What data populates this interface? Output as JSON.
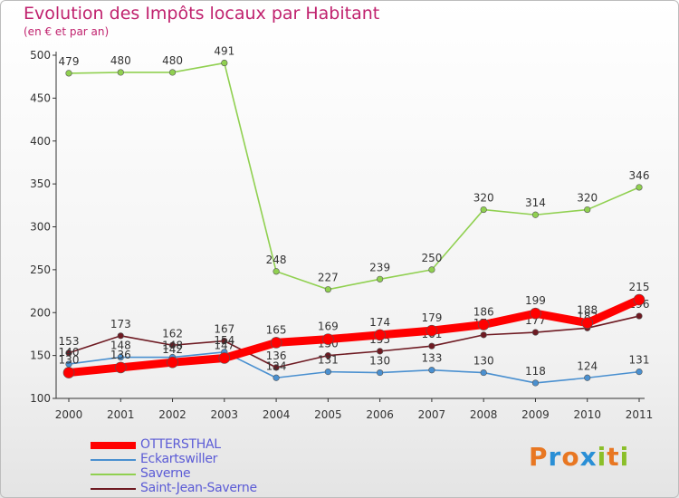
{
  "header": {
    "title": "Evolution des Impôts locaux par Habitant",
    "subtitle": "(en € et par an)"
  },
  "chart_data": {
    "type": "line",
    "title": "Evolution des Impôts locaux par Habitant",
    "subtitle": "(en € et par an)",
    "x": [
      "2000",
      "2001",
      "2002",
      "2003",
      "2004",
      "2005",
      "2006",
      "2007",
      "2008",
      "2009",
      "2010",
      "2011"
    ],
    "ylim": [
      100,
      500
    ],
    "yticks": [
      100,
      150,
      200,
      250,
      300,
      350,
      400,
      450,
      500
    ],
    "grid": false,
    "legend_position": "bottom-left",
    "series": [
      {
        "name": "Saverne",
        "color": "#90d050",
        "values": [
          479,
          480,
          480,
          491,
          248,
          227,
          239,
          250,
          320,
          314,
          320,
          346
        ]
      },
      {
        "name": "Saint-Jean-Saverne",
        "color": "#6e1a22",
        "values": [
          153,
          173,
          162,
          167,
          136,
          150,
          155,
          161,
          174,
          177,
          182,
          196
        ]
      },
      {
        "name": "Eckartswiller",
        "color": "#4a90d0",
        "values": [
          140,
          148,
          148,
          154,
          124,
          131,
          130,
          133,
          130,
          118,
          124,
          131
        ]
      },
      {
        "name": "OTTERSTHAL",
        "color": "#ff0000",
        "values": [
          130,
          136,
          142,
          147,
          165,
          169,
          174,
          179,
          186,
          199,
          188,
          215
        ]
      }
    ]
  },
  "legend": [
    {
      "name": "OTTERSTHAL",
      "color": "#ff0000"
    },
    {
      "name": "Eckartswiller",
      "color": "#4a90d0"
    },
    {
      "name": "Saverne",
      "color": "#90d050"
    },
    {
      "name": "Saint-Jean-Saverne",
      "color": "#6e1a22"
    }
  ],
  "logo": {
    "letters": [
      "P",
      "r",
      "o",
      "x",
      "i",
      "t",
      "i"
    ],
    "colors": [
      "#e87722",
      "#2a8fd6",
      "#e87722",
      "#2a8fd6",
      "#8bbf2a",
      "#e87722",
      "#8bbf2a"
    ]
  }
}
